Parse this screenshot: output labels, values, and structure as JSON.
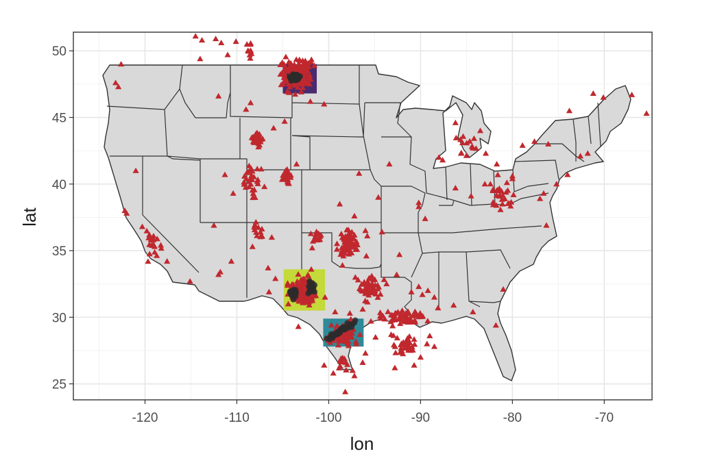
{
  "chart_data": {
    "type": "scatter",
    "xlabel": "lon",
    "ylabel": "lat",
    "xlim": [
      -127.8,
      -64.8
    ],
    "ylim": [
      23.8,
      51.4
    ],
    "grid": true,
    "x_ticks": [
      -120,
      -110,
      -100,
      -90,
      -80,
      -70
    ],
    "x_tick_labels": [
      "-120",
      "-110",
      "-100",
      "-90",
      "-80",
      "-70"
    ],
    "y_ticks": [
      25,
      30,
      35,
      40,
      45,
      50
    ],
    "y_tick_labels": [
      "25",
      "30",
      "35",
      "40",
      "45",
      "50"
    ],
    "colors": {
      "panel": "#ffffff",
      "grid_major": "#e6e6e6",
      "grid_minor": "#f2f2f2",
      "land": "#d9d9d9",
      "border": "#333333",
      "triangle": "#c0282e",
      "dot": "#2b2b2b"
    },
    "regions": [
      {
        "lon": [
          -105,
          -101.3
        ],
        "lat": [
          46.8,
          49.0
        ],
        "color": "#4a2a6e"
      },
      {
        "lon": [
          -104.9,
          -100.4
        ],
        "lat": [
          30.5,
          33.6
        ],
        "color": "#c4d93a"
      },
      {
        "lon": [
          -100.6,
          -96.2
        ],
        "lat": [
          27.8,
          29.9
        ],
        "color": "#2e8a98"
      }
    ],
    "triangles_clusters": [
      {
        "lon": -103.6,
        "lat": 48.3,
        "slon": 1.6,
        "slat": 1.1,
        "n": 140
      },
      {
        "lon": -102.8,
        "lat": 32.0,
        "slon": 1.3,
        "slat": 0.9,
        "n": 150
      },
      {
        "lon": -98.5,
        "lat": 28.8,
        "slon": 1.3,
        "slat": 0.8,
        "n": 90
      },
      {
        "lon": -97.8,
        "lat": 35.6,
        "slon": 1.1,
        "slat": 0.8,
        "n": 70
      },
      {
        "lon": -95.6,
        "lat": 32.2,
        "slon": 1.2,
        "slat": 0.9,
        "n": 55
      },
      {
        "lon": -92.0,
        "lat": 30.0,
        "slon": 2.2,
        "slat": 0.5,
        "n": 55
      },
      {
        "lon": -91.8,
        "lat": 27.8,
        "slon": 1.3,
        "slat": 0.7,
        "n": 35
      },
      {
        "lon": -107.7,
        "lat": 43.4,
        "slon": 0.6,
        "slat": 0.5,
        "n": 35
      },
      {
        "lon": -108.4,
        "lat": 40.2,
        "slon": 0.9,
        "slat": 1.2,
        "n": 30
      },
      {
        "lon": -104.6,
        "lat": 40.5,
        "slon": 0.5,
        "slat": 0.6,
        "n": 20
      },
      {
        "lon": -107.7,
        "lat": 36.5,
        "slon": 0.5,
        "slat": 0.6,
        "n": 12
      },
      {
        "lon": -119.0,
        "lat": 35.5,
        "slon": 0.9,
        "slat": 1.0,
        "n": 20
      },
      {
        "lon": -101.3,
        "lat": 36.0,
        "slon": 0.7,
        "slat": 0.4,
        "n": 15
      },
      {
        "lon": -98.5,
        "lat": 26.6,
        "slon": 0.6,
        "slat": 0.5,
        "n": 12
      },
      {
        "lon": -108.6,
        "lat": 50.1,
        "slon": 0.3,
        "slat": 0.6,
        "n": 10
      },
      {
        "lon": -81.3,
        "lat": 39.2,
        "slon": 1.4,
        "slat": 1.3,
        "n": 25
      },
      {
        "lon": -85.0,
        "lat": 42.9,
        "slon": 1.2,
        "slat": 1.0,
        "n": 12
      }
    ],
    "triangles_points": [
      [
        -114.5,
        51.1
      ],
      [
        -113.8,
        50.8
      ],
      [
        -112.3,
        50.9
      ],
      [
        -111.7,
        50.6
      ],
      [
        -110.1,
        50.7
      ],
      [
        -114.0,
        49.4
      ],
      [
        -111.0,
        49.7
      ],
      [
        -122.6,
        49.0
      ],
      [
        -122.9,
        47.3
      ],
      [
        -123.2,
        47.6
      ],
      [
        -121.0,
        41.0
      ],
      [
        -122.2,
        38.0
      ],
      [
        -122.0,
        37.8
      ],
      [
        -120.3,
        36.8
      ],
      [
        -117.6,
        34.2
      ],
      [
        -115.1,
        32.7
      ],
      [
        -112.0,
        33.2
      ],
      [
        -111.8,
        33.4
      ],
      [
        -110.6,
        34.2
      ],
      [
        -112.5,
        36.9
      ],
      [
        -111.3,
        40.7
      ],
      [
        -110.4,
        39.3
      ],
      [
        -106.2,
        36.0
      ],
      [
        -108.3,
        35.3
      ],
      [
        -106.6,
        33.7
      ],
      [
        -105.8,
        32.9
      ],
      [
        -106.5,
        31.9
      ],
      [
        -104.4,
        31.0
      ],
      [
        -107.0,
        39.8
      ],
      [
        -103.5,
        41.5
      ],
      [
        -104.8,
        44.7
      ],
      [
        -106.0,
        44.2
      ],
      [
        -109.0,
        45.6
      ],
      [
        -108.5,
        46.1
      ],
      [
        -112.0,
        46.6
      ],
      [
        -102.0,
        46.2
      ],
      [
        -100.5,
        46.0
      ],
      [
        -93.4,
        41.5
      ],
      [
        -94.6,
        39.0
      ],
      [
        -96.7,
        40.8
      ],
      [
        -97.2,
        37.6
      ],
      [
        -98.8,
        38.5
      ],
      [
        -95.8,
        36.1
      ],
      [
        -94.2,
        36.4
      ],
      [
        -92.3,
        34.7
      ],
      [
        -92.6,
        33.2
      ],
      [
        -90.2,
        38.6
      ],
      [
        -90.2,
        38.3
      ],
      [
        -89.5,
        37.4
      ],
      [
        -88.0,
        42.0
      ],
      [
        -87.6,
        41.8
      ],
      [
        -86.2,
        39.7
      ],
      [
        -84.5,
        39.1
      ],
      [
        -83.0,
        40.0
      ],
      [
        -82.1,
        39.6
      ],
      [
        -81.7,
        41.5
      ],
      [
        -80.0,
        40.4
      ],
      [
        -78.9,
        42.9
      ],
      [
        -77.6,
        43.2
      ],
      [
        -76.1,
        43.0
      ],
      [
        -74.0,
        40.7
      ],
      [
        -75.2,
        40.0
      ],
      [
        -76.6,
        39.3
      ],
      [
        -77.0,
        38.9
      ],
      [
        -76.3,
        36.9
      ],
      [
        -80.0,
        40.6
      ],
      [
        -80.6,
        40.1
      ],
      [
        -82.4,
        40.0
      ],
      [
        -84.3,
        42.7
      ],
      [
        -85.6,
        42.3
      ],
      [
        -86.2,
        44.6
      ],
      [
        -83.5,
        44.0
      ],
      [
        -82.9,
        42.3
      ],
      [
        -88.1,
        30.7
      ],
      [
        -88.5,
        31.5
      ],
      [
        -89.2,
        32.0
      ],
      [
        -89.8,
        31.7
      ],
      [
        -90.2,
        32.3
      ],
      [
        -91.0,
        31.9
      ],
      [
        -90.6,
        30.4
      ],
      [
        -81.8,
        29.4
      ],
      [
        -81.0,
        32.1
      ],
      [
        -84.3,
        30.4
      ],
      [
        -86.4,
        30.9
      ],
      [
        -92.0,
        30.5
      ],
      [
        -93.2,
        28.7
      ],
      [
        -94.9,
        28.5
      ],
      [
        -96.0,
        27.3
      ],
      [
        -97.4,
        26.0
      ],
      [
        -97.2,
        25.6
      ],
      [
        -100.5,
        26.4
      ],
      [
        -99.5,
        25.8
      ],
      [
        -98.2,
        24.4
      ],
      [
        -96.3,
        26.6
      ],
      [
        -92.8,
        26.2
      ],
      [
        -90.7,
        26.4
      ],
      [
        -89.3,
        28.0
      ],
      [
        -89.0,
        28.6
      ],
      [
        -90.0,
        27.0
      ],
      [
        -88.5,
        27.8
      ],
      [
        -70.1,
        46.5
      ],
      [
        -67.0,
        46.7
      ],
      [
        -65.4,
        45.3
      ],
      [
        -73.8,
        45.5
      ],
      [
        -71.2,
        46.8
      ],
      [
        -72.6,
        42.1
      ],
      [
        -71.8,
        42.3
      ],
      [
        -97.0,
        28.0
      ],
      [
        -96.6,
        28.7
      ],
      [
        -95.4,
        29.7
      ],
      [
        -94.1,
        30.1
      ],
      [
        -93.7,
        32.5
      ],
      [
        -95.3,
        32.3
      ],
      [
        -101.8,
        35.2
      ],
      [
        -101.9,
        33.6
      ],
      [
        -100.4,
        31.5
      ],
      [
        -98.5,
        33.9
      ],
      [
        -97.1,
        33.0
      ],
      [
        -96.8,
        32.8
      ],
      [
        -95.9,
        34.6
      ],
      [
        -97.5,
        35.5
      ],
      [
        -96.0,
        36.5
      ],
      [
        -98.4,
        34.6
      ],
      [
        -99.3,
        30.4
      ],
      [
        -97.7,
        30.3
      ],
      [
        -96.3,
        30.6
      ],
      [
        -102.4,
        31.9
      ],
      [
        -103.3,
        29.3
      ]
    ],
    "dot_clusters": [
      {
        "lon": -103.6,
        "lat": 48.0,
        "slon": 0.6,
        "slat": 0.3,
        "n": 45
      },
      {
        "lon": -103.8,
        "lat": 31.8,
        "slon": 0.35,
        "slat": 0.35,
        "n": 25
      },
      {
        "lon": -101.9,
        "lat": 32.1,
        "slon": 0.3,
        "slat": 0.45,
        "n": 25
      }
    ],
    "dot_lines": [
      {
        "lon0": -100.0,
        "lat0": 28.4,
        "lon1": -97.0,
        "lat1": 29.7,
        "n": 40
      }
    ]
  }
}
